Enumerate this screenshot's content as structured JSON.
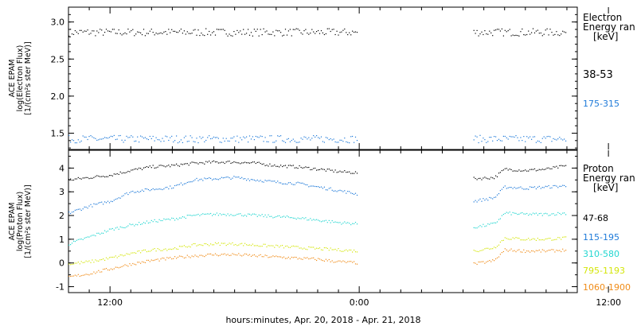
{
  "xaxis": {
    "ticks": [
      "12:00",
      "0:00",
      "12:00"
    ],
    "title": "hours:minutes, Apr. 20, 2018 - Apr. 21, 2018"
  },
  "chart_data": [
    {
      "type": "scatter",
      "panel": "electron",
      "ylabel": [
        "ACE EPAM",
        "log(Electron Flux)",
        "[1/(cm²s ster MeV)]"
      ],
      "yticks": [
        "1.5",
        "2.0",
        "2.5",
        "3.0"
      ],
      "ylim": [
        1.28,
        3.2
      ],
      "xlim_hours": [
        10,
        34.5
      ],
      "legend_title": [
        "Electron",
        "Energy ran",
        "[keV]"
      ],
      "series": [
        {
          "name": "38-53",
          "color": "#000000",
          "level": 2.86,
          "scatter": 0.05
        },
        {
          "name": "175-315",
          "color": "#1e7ad9",
          "level": 1.42,
          "scatter": 0.05
        }
      ],
      "data_segments_hours": [
        [
          10,
          23.9
        ],
        [
          29.5,
          34.0
        ]
      ]
    },
    {
      "type": "scatter",
      "panel": "proton",
      "ylabel": [
        "ACE EPAM",
        "log(Proton Flux)",
        "[1/(cm²s ster MeV)]"
      ],
      "yticks": [
        "-1",
        "0",
        "1",
        "2",
        "3",
        "4"
      ],
      "ylim": [
        -1.25,
        4.75
      ],
      "xlim_hours": [
        10,
        34.5
      ],
      "legend_title": [
        "Proton",
        "Energy ran",
        "[keV]"
      ],
      "series": [
        {
          "name": "47-68",
          "color": "#000000",
          "profile": [
            [
              10,
              3.5
            ],
            [
              11,
              3.6
            ],
            [
              12,
              3.7
            ],
            [
              13,
              3.9
            ],
            [
              14,
              4.05
            ],
            [
              15,
              4.1
            ],
            [
              16,
              4.2
            ],
            [
              17,
              4.25
            ],
            [
              18,
              4.25
            ],
            [
              19,
              4.2
            ],
            [
              20,
              4.1
            ],
            [
              21,
              4.05
            ],
            [
              22,
              3.95
            ],
            [
              23,
              3.85
            ],
            [
              23.9,
              3.8
            ],
            [
              29.5,
              3.55
            ],
            [
              30.5,
              3.6
            ],
            [
              31,
              3.95
            ],
            [
              32,
              3.9
            ],
            [
              33,
              3.95
            ],
            [
              34,
              4.1
            ]
          ]
        },
        {
          "name": "115-195",
          "color": "#1e7ad9",
          "profile": [
            [
              10,
              2.1
            ],
            [
              11,
              2.4
            ],
            [
              12,
              2.6
            ],
            [
              13,
              3.0
            ],
            [
              14,
              3.1
            ],
            [
              15,
              3.2
            ],
            [
              16,
              3.5
            ],
            [
              17,
              3.55
            ],
            [
              18,
              3.6
            ],
            [
              19,
              3.5
            ],
            [
              20,
              3.4
            ],
            [
              21,
              3.35
            ],
            [
              22,
              3.2
            ],
            [
              23,
              3.05
            ],
            [
              23.9,
              2.9
            ],
            [
              29.5,
              2.6
            ],
            [
              30.5,
              2.75
            ],
            [
              31,
              3.2
            ],
            [
              32,
              3.15
            ],
            [
              33,
              3.2
            ],
            [
              34,
              3.25
            ]
          ]
        },
        {
          "name": "310-580",
          "color": "#22d6d0",
          "profile": [
            [
              10,
              0.8
            ],
            [
              11,
              1.1
            ],
            [
              12,
              1.4
            ],
            [
              13,
              1.6
            ],
            [
              14,
              1.75
            ],
            [
              15,
              1.85
            ],
            [
              16,
              2.0
            ],
            [
              17,
              2.05
            ],
            [
              18,
              2.05
            ],
            [
              19,
              2.0
            ],
            [
              20,
              1.95
            ],
            [
              21,
              1.9
            ],
            [
              22,
              1.8
            ],
            [
              23,
              1.7
            ],
            [
              23.9,
              1.65
            ],
            [
              29.5,
              1.5
            ],
            [
              30.5,
              1.65
            ],
            [
              31,
              2.1
            ],
            [
              32,
              2.05
            ],
            [
              33,
              2.05
            ],
            [
              34,
              2.1
            ]
          ]
        },
        {
          "name": "795-1193",
          "color": "#d4e60a",
          "profile": [
            [
              10,
              -0.05
            ],
            [
              11,
              0.05
            ],
            [
              12,
              0.2
            ],
            [
              13,
              0.4
            ],
            [
              14,
              0.55
            ],
            [
              15,
              0.6
            ],
            [
              16,
              0.75
            ],
            [
              17,
              0.8
            ],
            [
              18,
              0.8
            ],
            [
              19,
              0.75
            ],
            [
              20,
              0.7
            ],
            [
              21,
              0.65
            ],
            [
              22,
              0.6
            ],
            [
              23,
              0.55
            ],
            [
              23.9,
              0.5
            ],
            [
              29.5,
              0.5
            ],
            [
              30.5,
              0.65
            ],
            [
              31,
              1.05
            ],
            [
              32,
              1.0
            ],
            [
              33,
              1.0
            ],
            [
              34,
              1.05
            ]
          ]
        },
        {
          "name": "1060-1900",
          "color": "#f08c18",
          "profile": [
            [
              10,
              -0.6
            ],
            [
              11,
              -0.45
            ],
            [
              12,
              -0.25
            ],
            [
              13,
              -0.05
            ],
            [
              14,
              0.1
            ],
            [
              15,
              0.2
            ],
            [
              16,
              0.3
            ],
            [
              17,
              0.35
            ],
            [
              18,
              0.35
            ],
            [
              19,
              0.3
            ],
            [
              20,
              0.25
            ],
            [
              21,
              0.2
            ],
            [
              22,
              0.15
            ],
            [
              23,
              0.05
            ],
            [
              23.9,
              0.0
            ],
            [
              29.5,
              -0.05
            ],
            [
              30.5,
              0.1
            ],
            [
              31,
              0.55
            ],
            [
              32,
              0.5
            ],
            [
              33,
              0.5
            ],
            [
              34,
              0.55
            ]
          ]
        }
      ],
      "data_segments_hours": [
        [
          10,
          23.9
        ],
        [
          29.5,
          34.0
        ]
      ]
    }
  ]
}
